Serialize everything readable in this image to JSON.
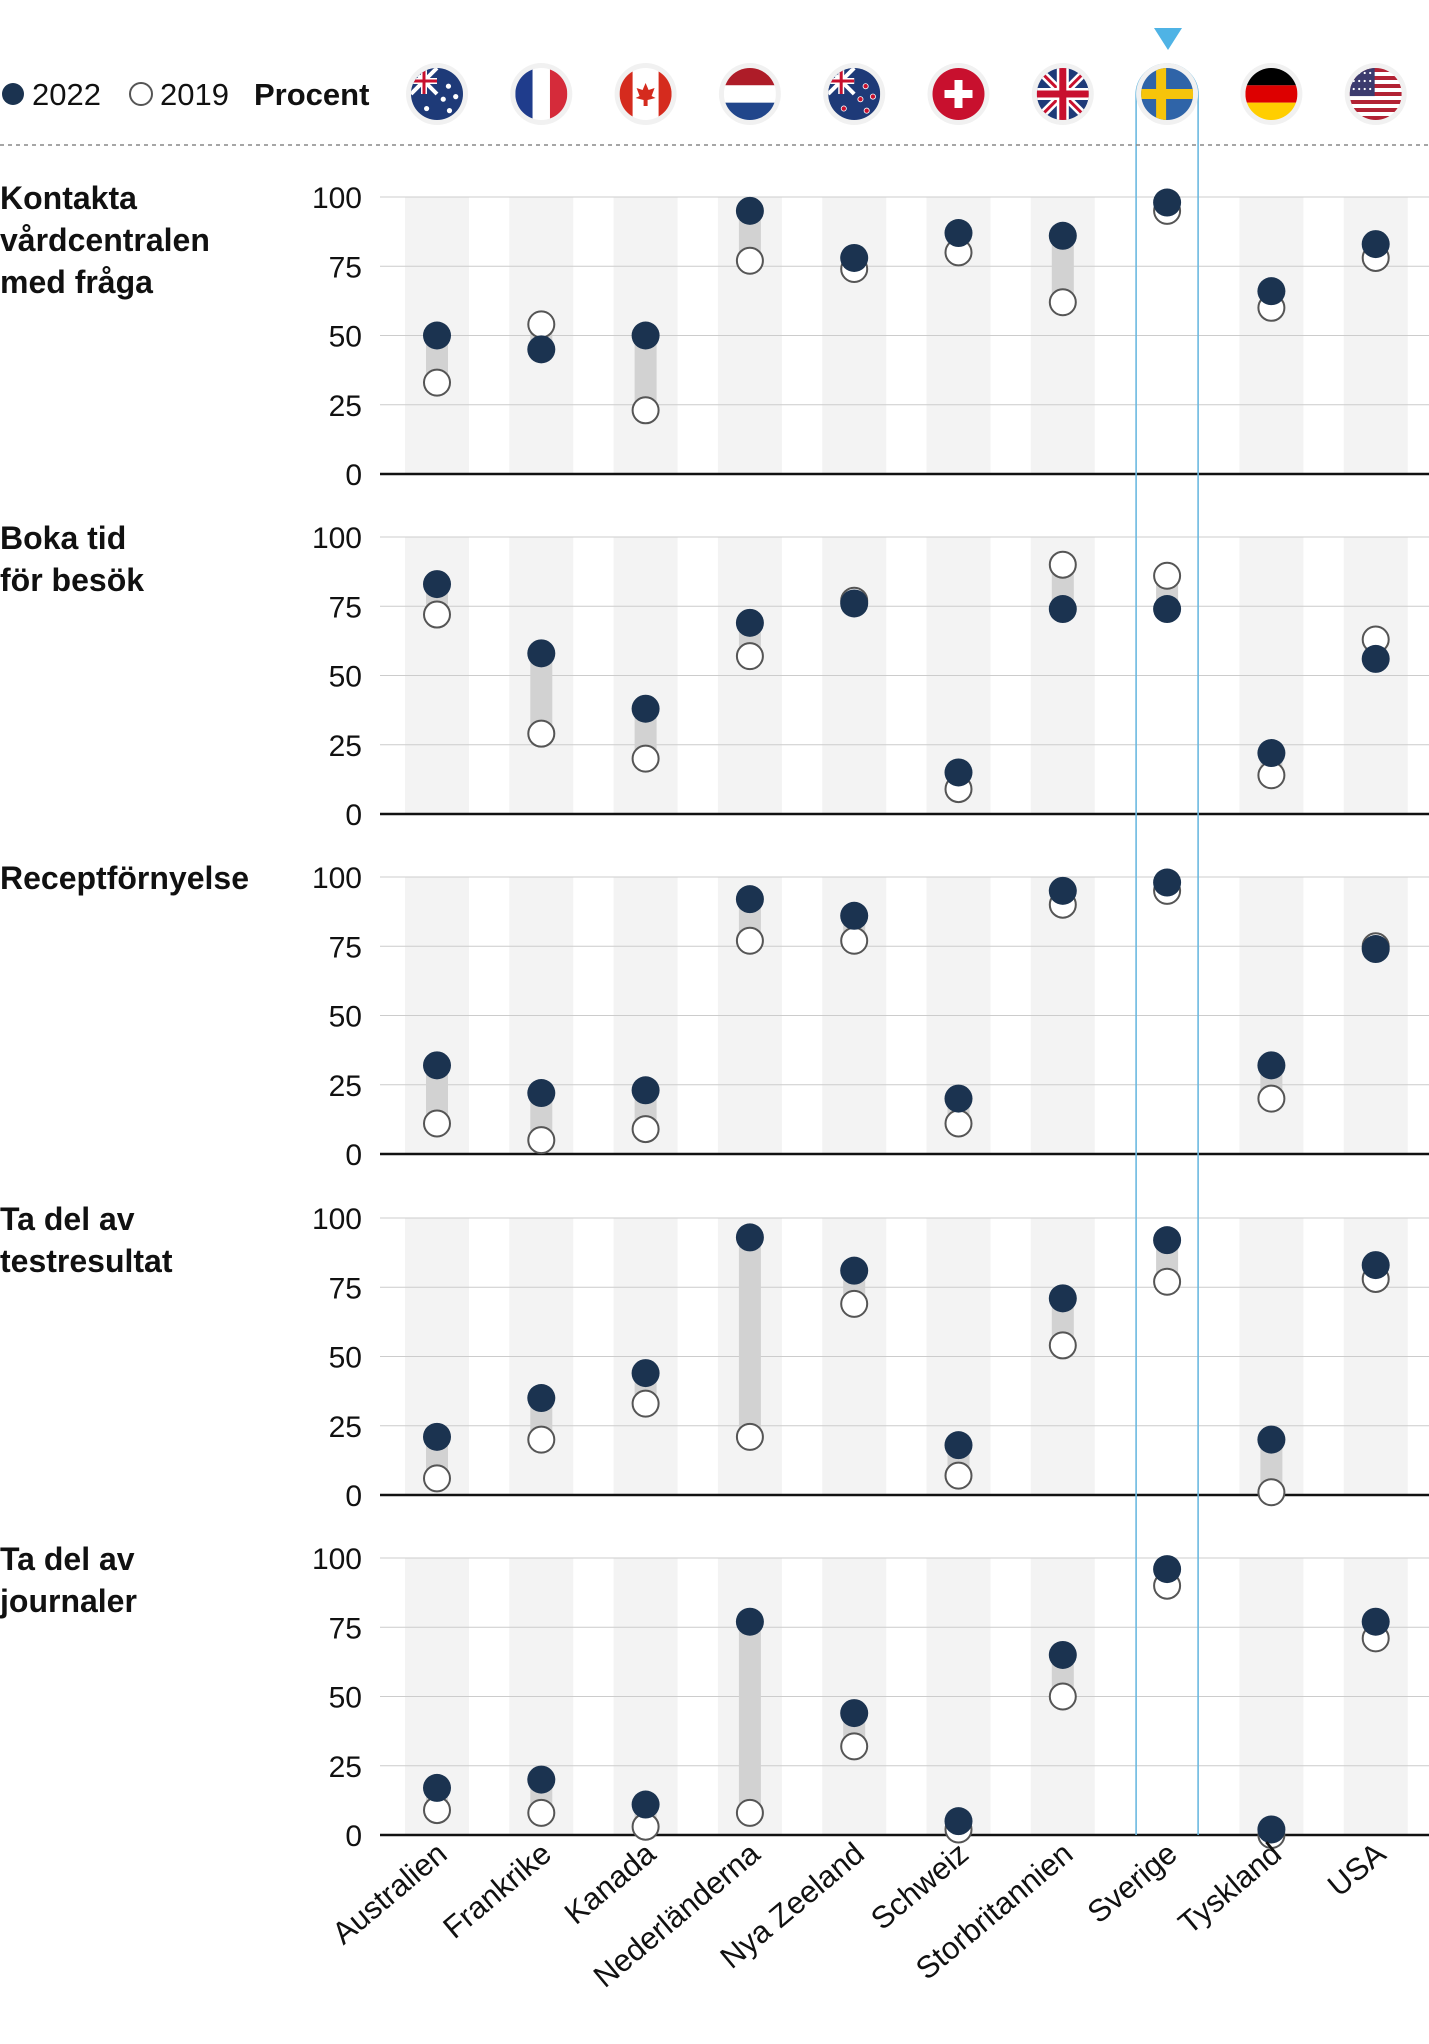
{
  "legend": {
    "label_2022": "2022",
    "label_2019": "2019",
    "unit": "Procent"
  },
  "colors": {
    "dot_2022": "#1b3350",
    "dot_2019": "#ffffff",
    "dot_2019_stroke": "#555555",
    "band": "#f3f3f3",
    "range": "#d2d2d2",
    "highlight": "#6cb9e0",
    "axis": "#111111",
    "grid": "#cccccc"
  },
  "flags": [
    "australia-flag",
    "france-flag",
    "canada-flag",
    "netherlands-flag",
    "new-zealand-flag",
    "switzerland-flag",
    "uk-flag",
    "sweden-flag",
    "germany-flag",
    "usa-flag"
  ],
  "chart_data": {
    "type": "scatter",
    "subtype": "dot-range",
    "highlight": "Sverige",
    "categories": [
      "Australien",
      "Frankrike",
      "Kanada",
      "Nederländerna",
      "Nya Zeeland",
      "Schweiz",
      "Storbritannien",
      "Sverige",
      "Tyskland",
      "USA"
    ],
    "ylim": [
      0,
      100
    ],
    "yticks": [
      "0",
      "25",
      "50",
      "75",
      "100"
    ],
    "panels": [
      {
        "title_lines": [
          "Kontakta",
          "vårdcentralen",
          "med fråga"
        ],
        "series": [
          {
            "name": "2022",
            "values": [
              50,
              45,
              50,
              95,
              78,
              87,
              86,
              98,
              66,
              83
            ]
          },
          {
            "name": "2019",
            "values": [
              33,
              54,
              23,
              77,
              74,
              80,
              62,
              95,
              60,
              78
            ]
          }
        ]
      },
      {
        "title_lines": [
          "Boka tid",
          "för besök"
        ],
        "series": [
          {
            "name": "2022",
            "values": [
              83,
              58,
              38,
              69,
              76,
              15,
              74,
              74,
              22,
              56
            ]
          },
          {
            "name": "2019",
            "values": [
              72,
              29,
              20,
              57,
              77,
              9,
              90,
              86,
              14,
              63
            ]
          }
        ]
      },
      {
        "title_lines": [
          "Receptförnyelse"
        ],
        "series": [
          {
            "name": "2022",
            "values": [
              32,
              22,
              23,
              92,
              86,
              20,
              95,
              98,
              32,
              74
            ]
          },
          {
            "name": "2019",
            "values": [
              11,
              5,
              9,
              77,
              77,
              11,
              90,
              95,
              20,
              75
            ]
          }
        ]
      },
      {
        "title_lines": [
          "Ta del av",
          "testresultat"
        ],
        "series": [
          {
            "name": "2022",
            "values": [
              21,
              35,
              44,
              93,
              81,
              18,
              71,
              92,
              20,
              83
            ]
          },
          {
            "name": "2019",
            "values": [
              6,
              20,
              33,
              21,
              69,
              7,
              54,
              77,
              1,
              78
            ]
          }
        ]
      },
      {
        "title_lines": [
          "Ta del av",
          "journaler"
        ],
        "series": [
          {
            "name": "2022",
            "values": [
              17,
              20,
              11,
              77,
              44,
              5,
              65,
              96,
              2,
              77
            ]
          },
          {
            "name": "2019",
            "values": [
              9,
              8,
              3,
              8,
              32,
              2,
              50,
              90,
              0,
              71
            ]
          }
        ]
      }
    ]
  }
}
